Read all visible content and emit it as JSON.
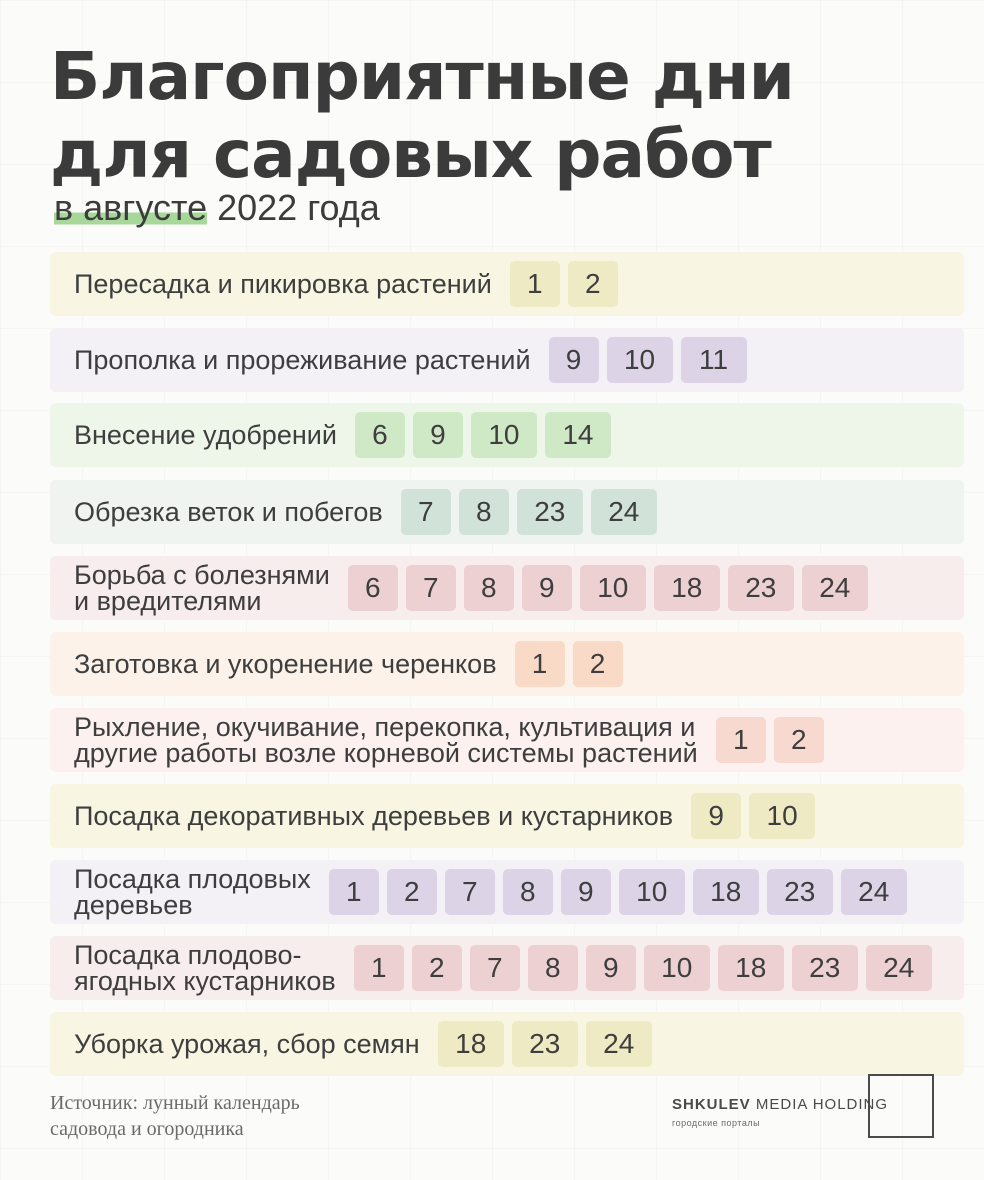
{
  "title_line1": "Благоприятные дни",
  "title_line2": "для садовых работ",
  "subtitle_highlight": "в августе",
  "subtitle_rest": " 2022 года",
  "colors": {
    "yellow": "#eeeac4",
    "purple": "#dcd3e7",
    "green": "#cfe8c6",
    "teal": "#d1e2d8",
    "pink": "#ecd0d2",
    "orange": "#f8dac6",
    "salmon": "#f7d9d0"
  },
  "rows": [
    {
      "label": "Пересадка и пикировка растений",
      "days": [
        "1",
        "2"
      ],
      "color": "yellow"
    },
    {
      "label": "Прополка и прореживание растений",
      "days": [
        "9",
        "10",
        "11"
      ],
      "color": "purple"
    },
    {
      "label": "Внесение удобрений",
      "days": [
        "6",
        "9",
        "10",
        "14"
      ],
      "color": "green"
    },
    {
      "label": "Обрезка веток и побегов",
      "days": [
        "7",
        "8",
        "23",
        "24"
      ],
      "color": "teal"
    },
    {
      "label": "Борьба с болезнями\nи вредителями",
      "days": [
        "6",
        "7",
        "8",
        "9",
        "10",
        "18",
        "23",
        "24"
      ],
      "color": "pink"
    },
    {
      "label": "Заготовка и укоренение черенков",
      "days": [
        "1",
        "2"
      ],
      "color": "orange"
    },
    {
      "label": "Рыхление, окучивание, перекопка, культивация и\nдругие работы возле корневой системы растений",
      "days": [
        "1",
        "2"
      ],
      "color": "salmon"
    },
    {
      "label": "Посадка декоративных деревьев и кустарников",
      "days": [
        "9",
        "10"
      ],
      "color": "yellow"
    },
    {
      "label": "Посадка плодовых\nдеревьев",
      "days": [
        "1",
        "2",
        "7",
        "8",
        "9",
        "10",
        "18",
        "23",
        "24"
      ],
      "color": "purple"
    },
    {
      "label": "Посадка плодово-\nягодных кустарников",
      "days": [
        "1",
        "2",
        "7",
        "8",
        "9",
        "10",
        "18",
        "23",
        "24"
      ],
      "color": "pink"
    },
    {
      "label": "Уборка урожая, сбор семян",
      "days": [
        "18",
        "23",
        "24"
      ],
      "color": "yellow"
    }
  ],
  "source_line1": "Источник: лунный календарь",
  "source_line2": "садовода и огородника",
  "logo_bold": "SHKULEV",
  "logo_rest": " MEDIA HOLDING",
  "logo_sub": "городские порталы"
}
